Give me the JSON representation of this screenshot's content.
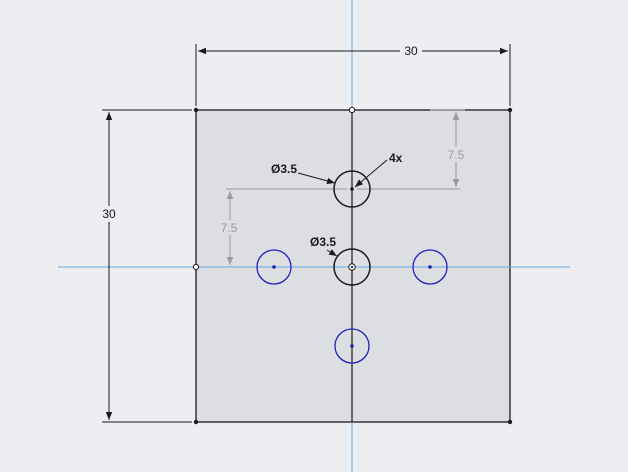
{
  "sketch": {
    "width_label": "30",
    "height_label": "30",
    "offset_top_label": "7.5",
    "offset_left_label": "7.5",
    "diameter_label_top": "Ø3.5",
    "count_label": "4x",
    "diameter_label_center": "Ø3.5"
  },
  "colors": {
    "background": "#eceef1",
    "plate_fill": "#dcdee2",
    "line": "#1a1a1a",
    "axis": "#5b9bd5",
    "construction": "#8a8a8a",
    "unconstrained": "#1f1fbf"
  }
}
